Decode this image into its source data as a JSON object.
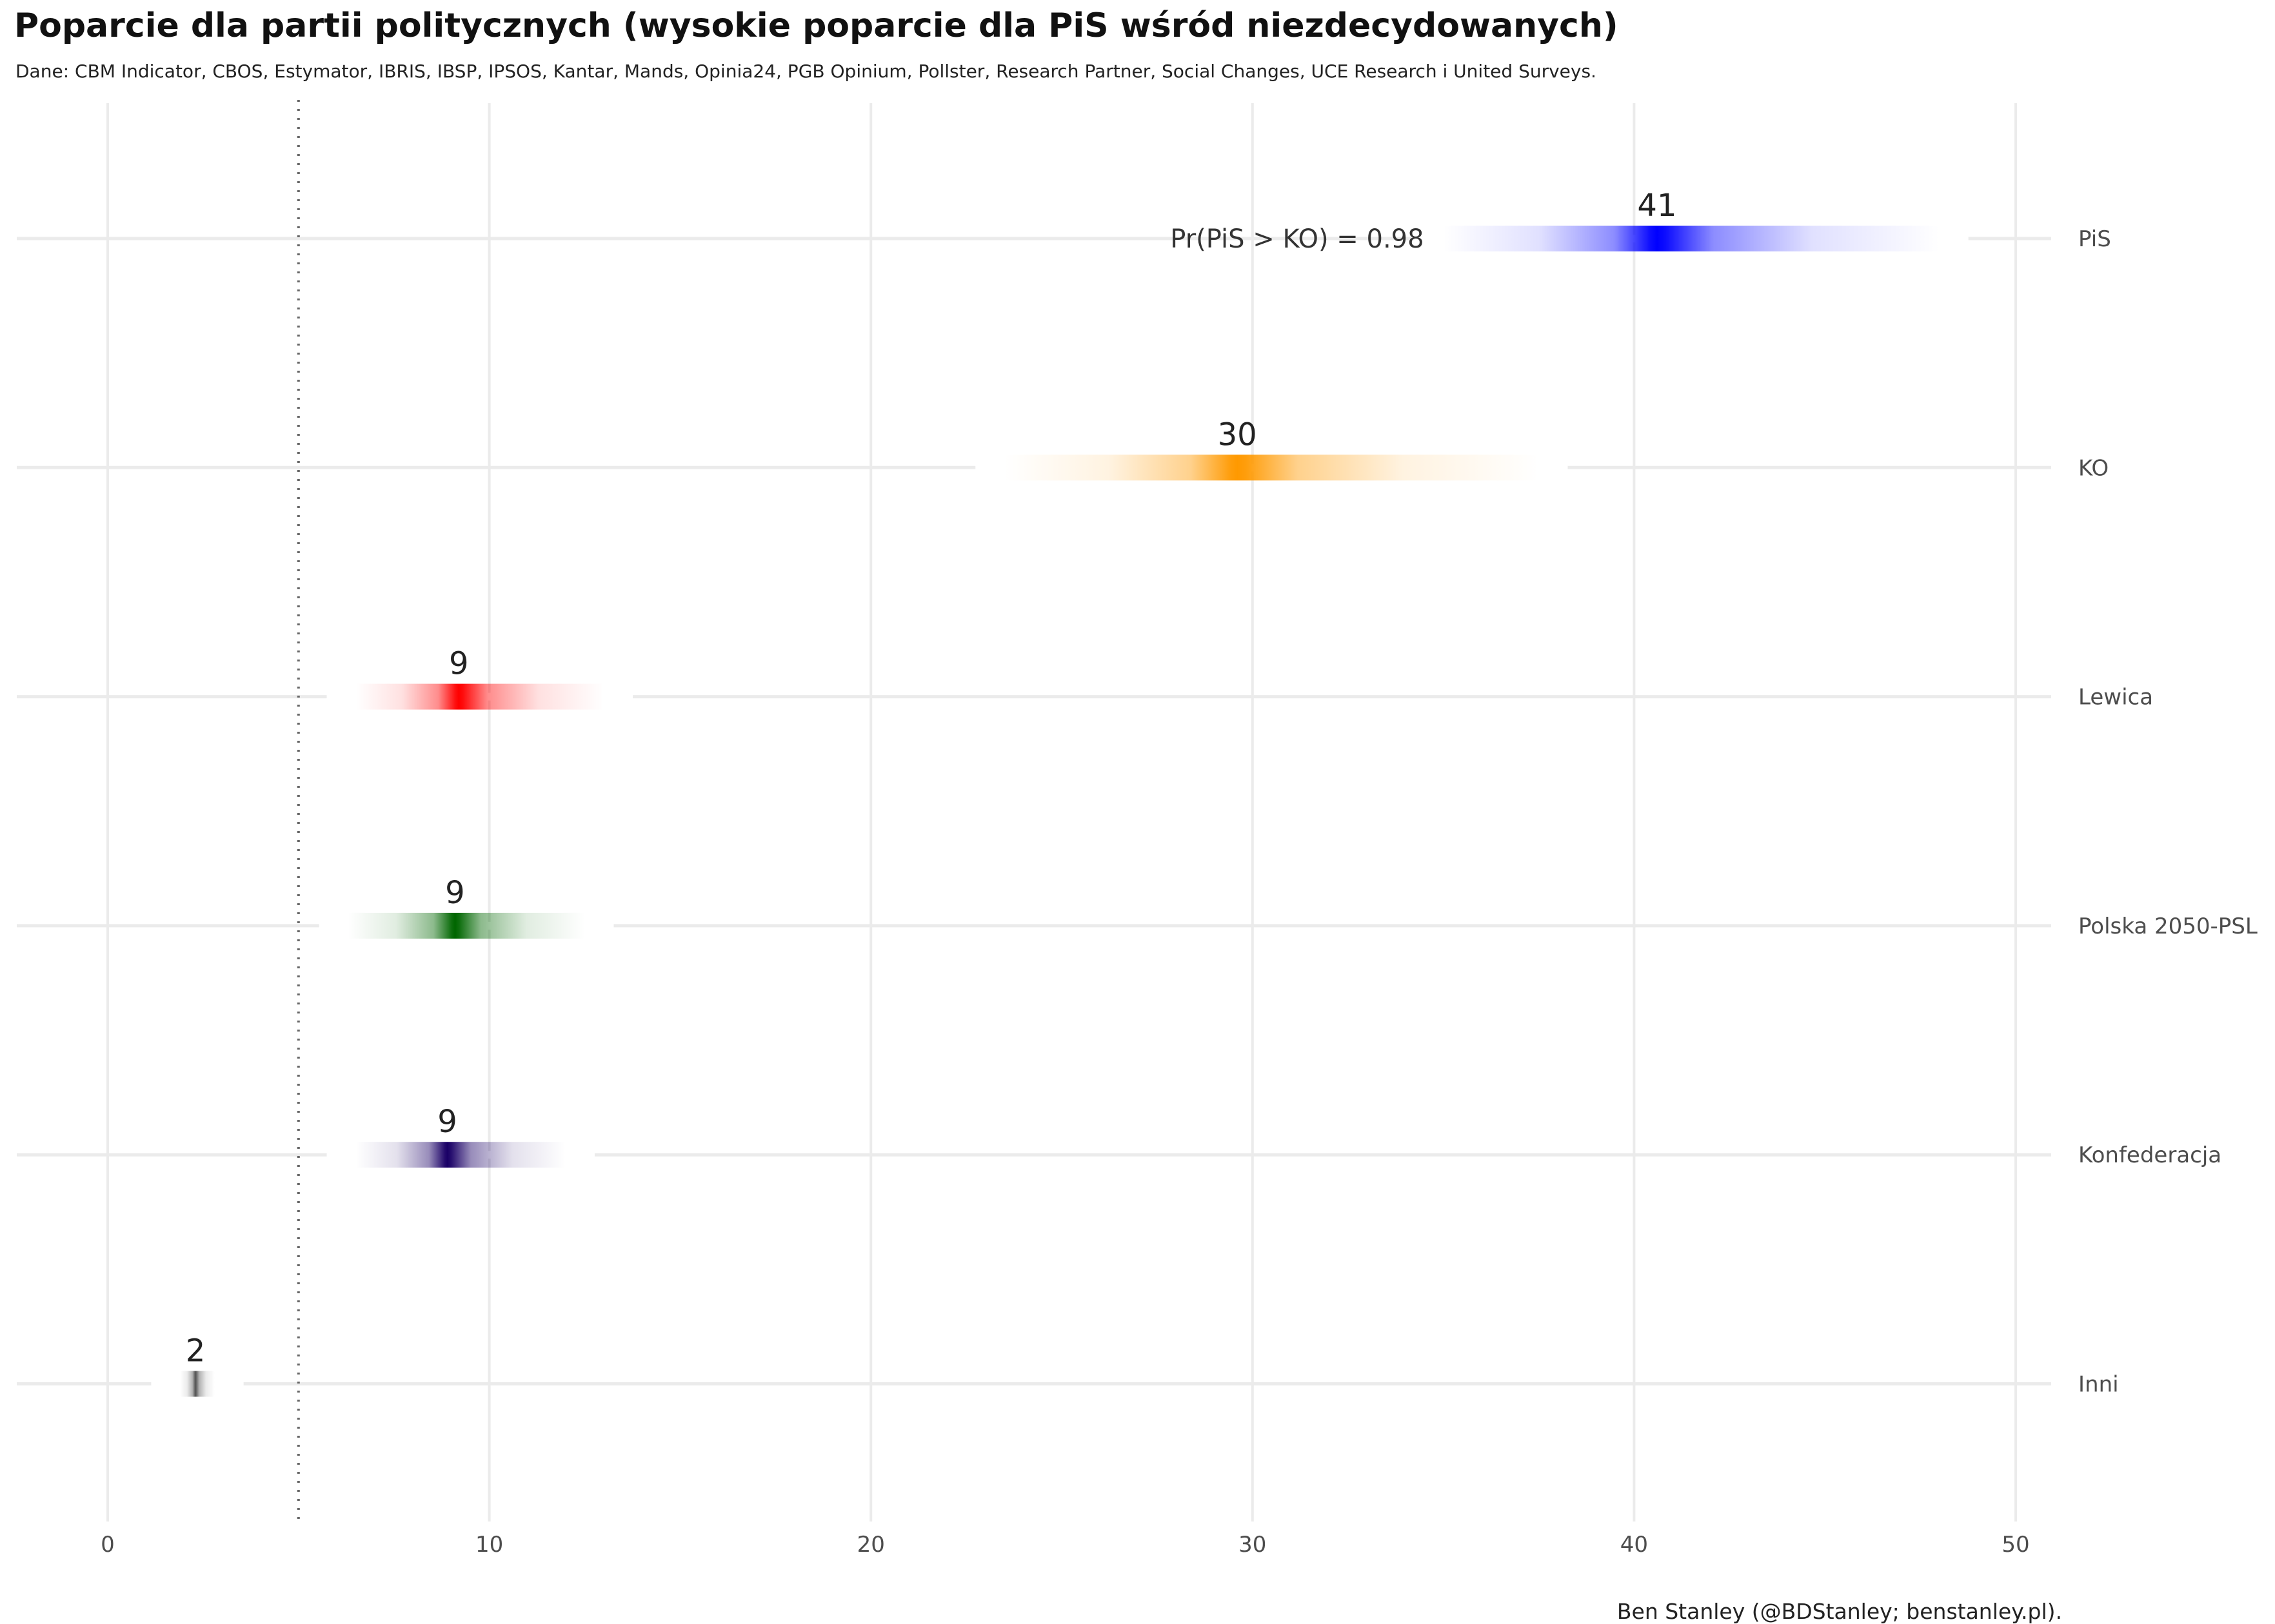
{
  "chart_data": {
    "type": "density-strip",
    "title": "Poparcie dla partii politycznych (wysokie poparcie dla PiS wśród niezdecydowanych)",
    "subtitle": "Dane: CBM Indicator, CBOS, Estymator, IBRIS, IBSP, IPSOS, Kantar, Mands, Opinia24, PGB Opinium, Pollster, Research Partner, Social Changes, UCE Research i United Surveys.",
    "caption": "Ben Stanley (@BDStanley; benstanley.pl).",
    "xlabel": "",
    "ylabel": "",
    "xlim": [
      0,
      50
    ],
    "x_ticks": [
      "0",
      "10",
      "20",
      "30",
      "40",
      "50"
    ],
    "threshold": 5,
    "grid": true,
    "legend": "none",
    "annotation": "Pr(PiS > KO)  =  0.98",
    "series": [
      {
        "name": "PiS",
        "estimate": 40.6,
        "label": "41",
        "low": 35,
        "high": 48,
        "color": "#0000ff"
      },
      {
        "name": "KO",
        "estimate": 29.6,
        "label": "30",
        "low": 23.5,
        "high": 37.5,
        "color": "#ff9900"
      },
      {
        "name": "Lewica",
        "estimate": 9.2,
        "label": "9",
        "low": 6.5,
        "high": 13,
        "color": "#ff0000"
      },
      {
        "name": "Polska 2050-PSL",
        "estimate": 9.1,
        "label": "9",
        "low": 6.3,
        "high": 12.5,
        "color": "#006600"
      },
      {
        "name": "Konfederacja",
        "estimate": 8.9,
        "label": "9",
        "low": 6.5,
        "high": 12,
        "color": "#1a0066"
      },
      {
        "name": "Inni",
        "estimate": 2.3,
        "label": "2",
        "low": 1.9,
        "high": 2.8,
        "color": "#555555"
      }
    ]
  }
}
